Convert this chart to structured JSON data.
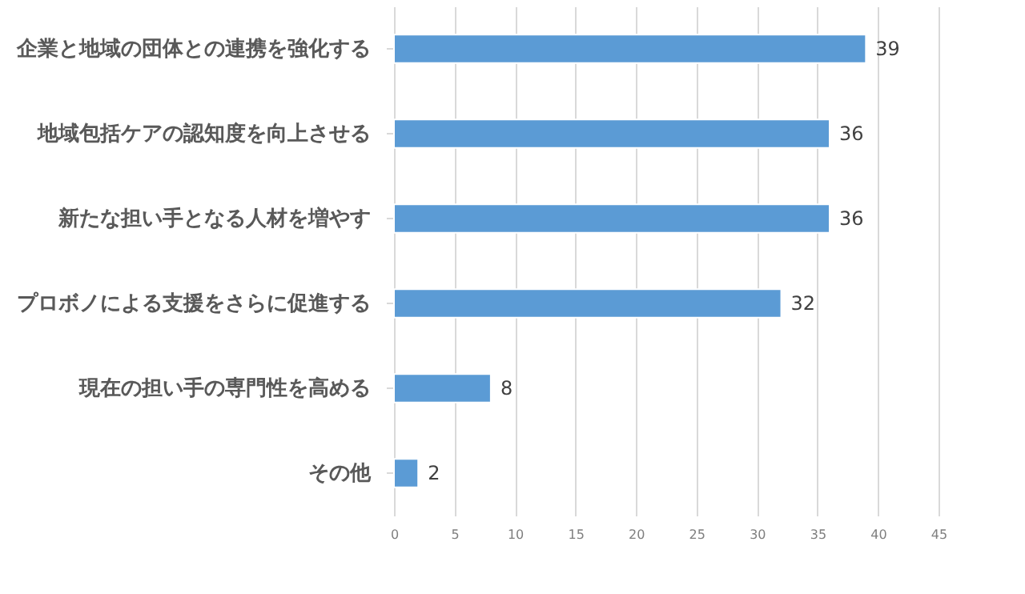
{
  "chart_data": {
    "type": "bar",
    "orientation": "horizontal",
    "categories": [
      "企業と地域の団体との連携を強化する",
      "地域包括ケアの認知度を向上させる",
      "新たな担い手となる人材を増やす",
      "プロボノによる支援をさらに促進する",
      "現在の担い手の専門性を高める",
      "その他"
    ],
    "values": [
      39,
      36,
      36,
      32,
      8,
      2
    ],
    "color": "#5b9bd5",
    "xlim": [
      0,
      45
    ],
    "xticks": [
      0,
      5,
      10,
      15,
      20,
      25,
      30,
      35,
      40,
      45
    ],
    "grid": "x",
    "data_labels": true
  }
}
